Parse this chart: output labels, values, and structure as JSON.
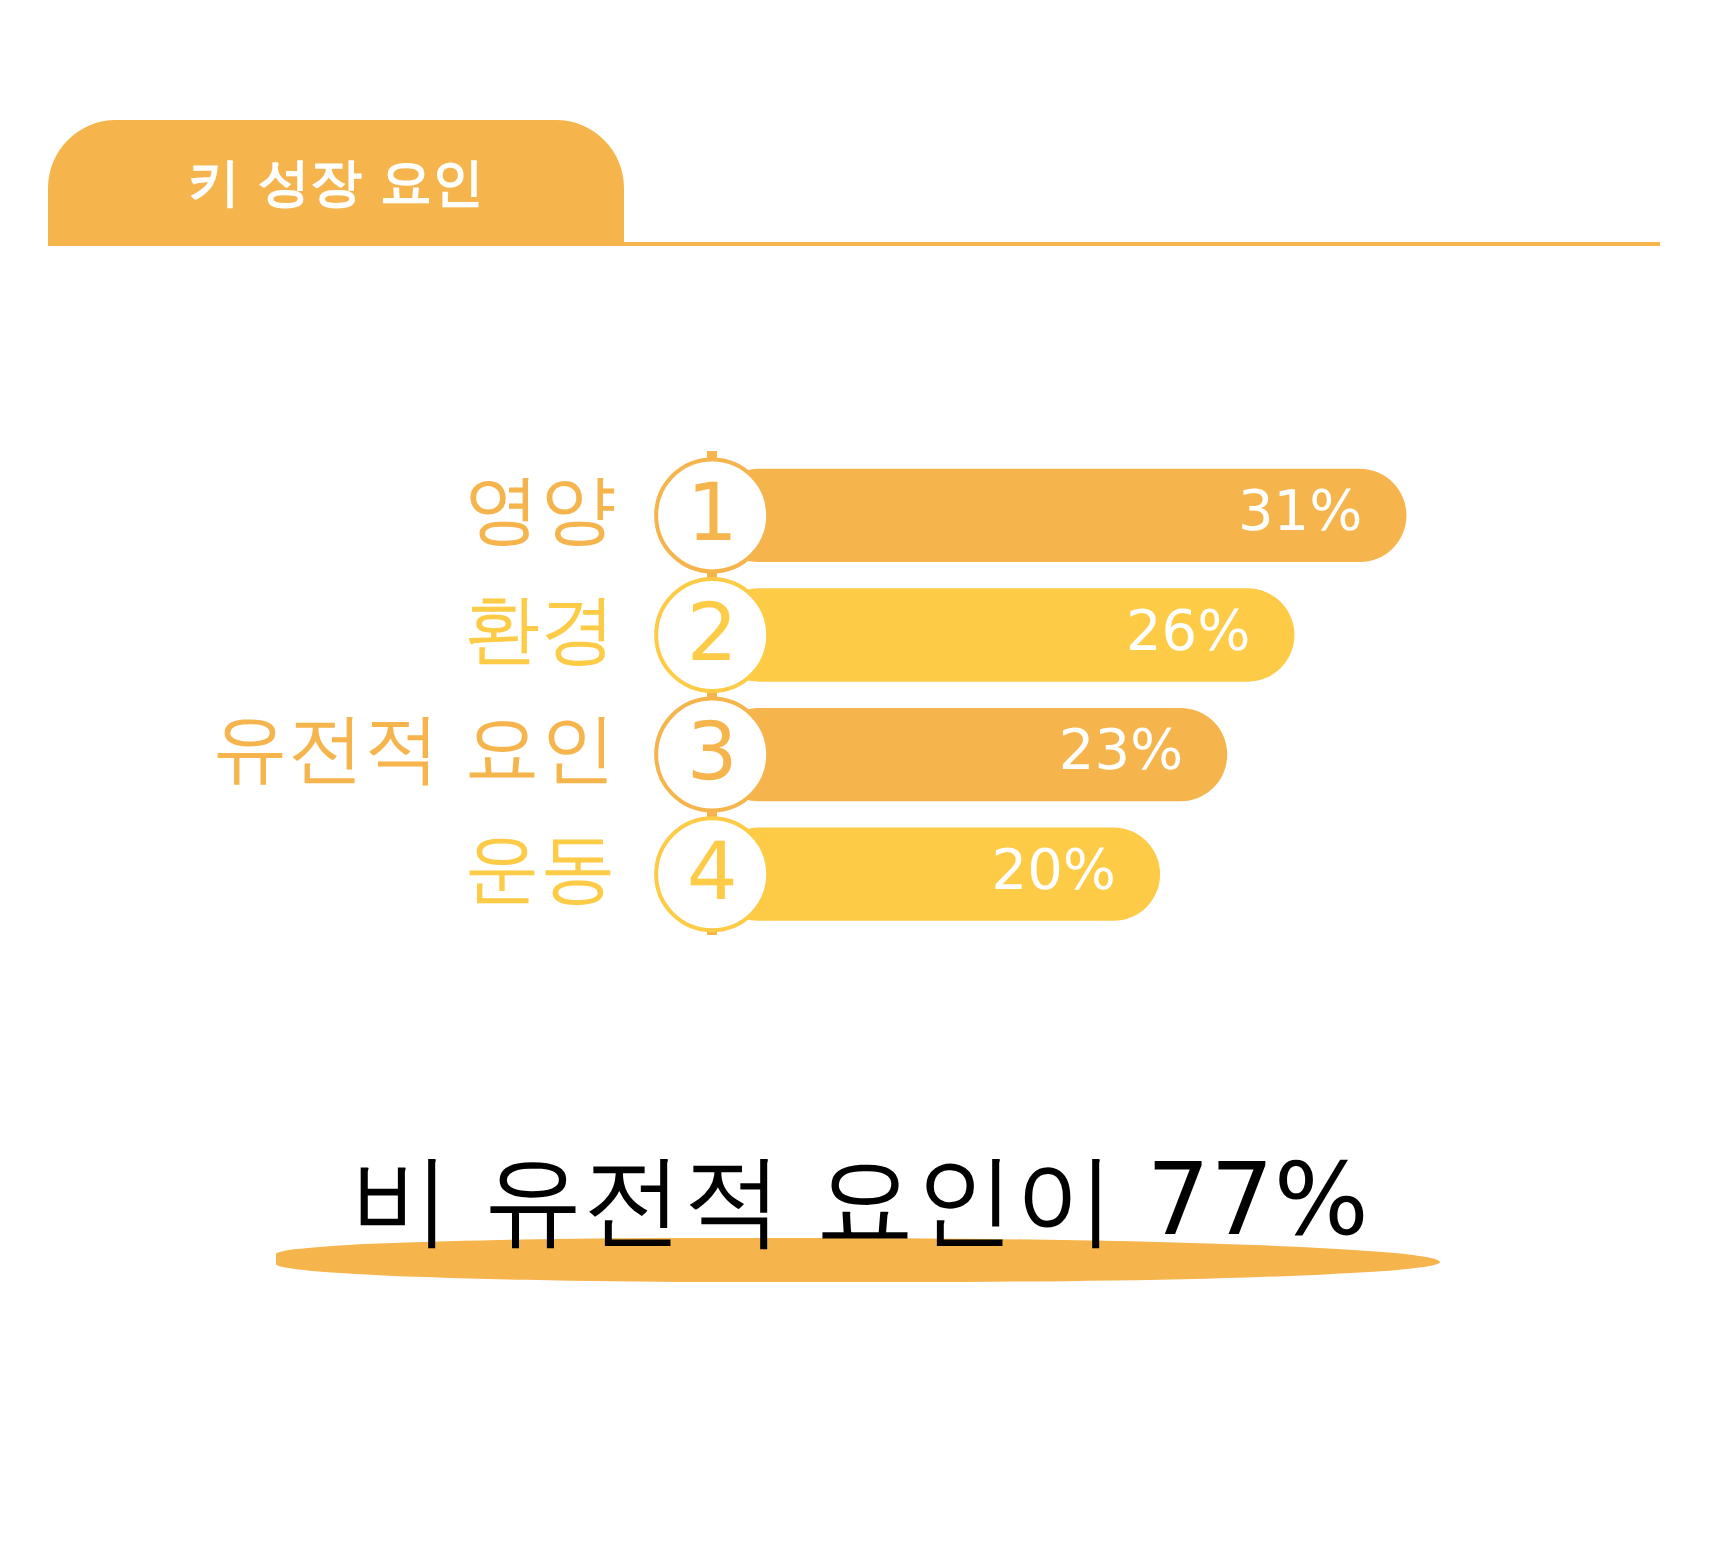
{
  "chart_data": {
    "type": "bar",
    "orientation": "horizontal",
    "title": "키 성장 요인",
    "categories": [
      "영양",
      "환경",
      "유전적 요인",
      "운동"
    ],
    "values": [
      31,
      26,
      23,
      20
    ],
    "value_labels": [
      "31%",
      "26%",
      "23%",
      "20%"
    ],
    "colors": [
      "#f5b44c",
      "#fecb47",
      "#f5b44c",
      "#fecb47"
    ],
    "tick_labels": "y",
    "grid": false,
    "legend": false,
    "annotations": [
      {
        "text": "1",
        "y": "영양"
      },
      {
        "text": "2",
        "y": "환경"
      },
      {
        "text": "3",
        "y": "유전적 요인"
      },
      {
        "text": "4",
        "y": "운동"
      },
      "비 유전적 요인이 77%"
    ]
  }
}
